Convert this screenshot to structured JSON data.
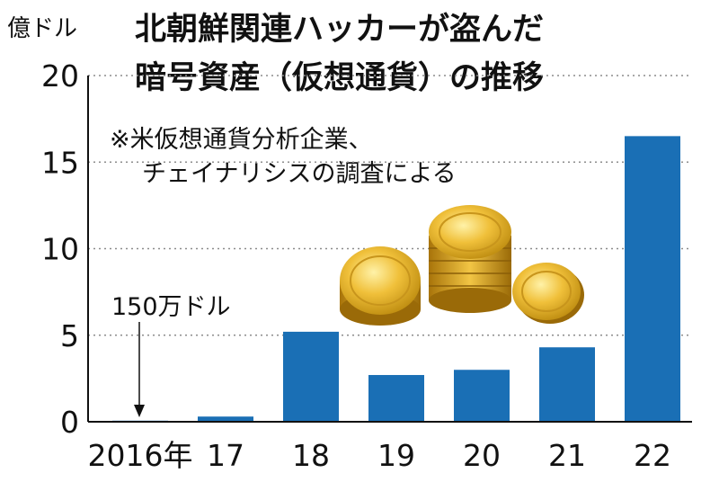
{
  "chart_data": {
    "type": "bar",
    "title_lines": [
      "北朝鮮関連ハッカーが盗んだ",
      "暗号資産（仮想通貨）の推移"
    ],
    "note_lines": [
      "※米仮想通貨分析企業、",
      "チェイナリシスの調査による"
    ],
    "unit": "億ドル",
    "categories": [
      "2016年",
      "17",
      "18",
      "19",
      "20",
      "21",
      "22"
    ],
    "values": [
      0.015,
      0.3,
      5.2,
      2.7,
      3.0,
      4.3,
      16.5
    ],
    "ylim": [
      0,
      20
    ],
    "yticks": [
      0,
      5,
      10,
      15,
      20
    ],
    "grid": true,
    "bar_color": "#1a6fb5",
    "grid_color": "#8c8c8c",
    "annotation": {
      "text": "150万ドル",
      "category": "2016年"
    }
  },
  "decoration": {
    "icon": "gold-coins-icon"
  }
}
